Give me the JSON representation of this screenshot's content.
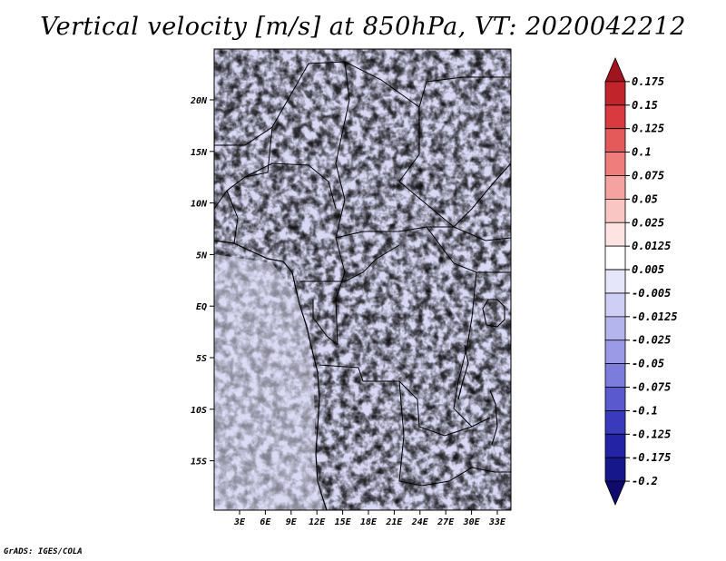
{
  "title": "Vertical velocity [m/s] at 850hPa, VT: 2020042212",
  "credit": "GrADS: IGES/COLA",
  "map": {
    "lat_labels": [
      "20N",
      "15N",
      "10N",
      "5N",
      "EQ",
      "5S",
      "10S",
      "15S"
    ],
    "lon_labels": [
      "3E",
      "6E",
      "9E",
      "12E",
      "15E",
      "18E",
      "21E",
      "24E",
      "27E",
      "30E",
      "33E"
    ]
  },
  "colorbar": {
    "levels": [
      "0.175",
      "0.15",
      "0.125",
      "0.1",
      "0.075",
      "0.05",
      "0.025",
      "0.0125",
      "0.005",
      "-0.005",
      "-0.0125",
      "-0.025",
      "-0.05",
      "-0.075",
      "-0.1",
      "-0.125",
      "-0.175",
      "-0.2"
    ],
    "colors": [
      "#a0141e",
      "#c2242c",
      "#d93a3f",
      "#e45a5a",
      "#ee7d7b",
      "#f4a3a0",
      "#f9c6c3",
      "#fde4e2",
      "#ffffff",
      "#e6e6fa",
      "#cfcff5",
      "#b5b5ee",
      "#9a9ae6",
      "#7c7cdc",
      "#5a5ace",
      "#3a3abd",
      "#2323a6",
      "#17178c",
      "#100a6c"
    ]
  }
}
